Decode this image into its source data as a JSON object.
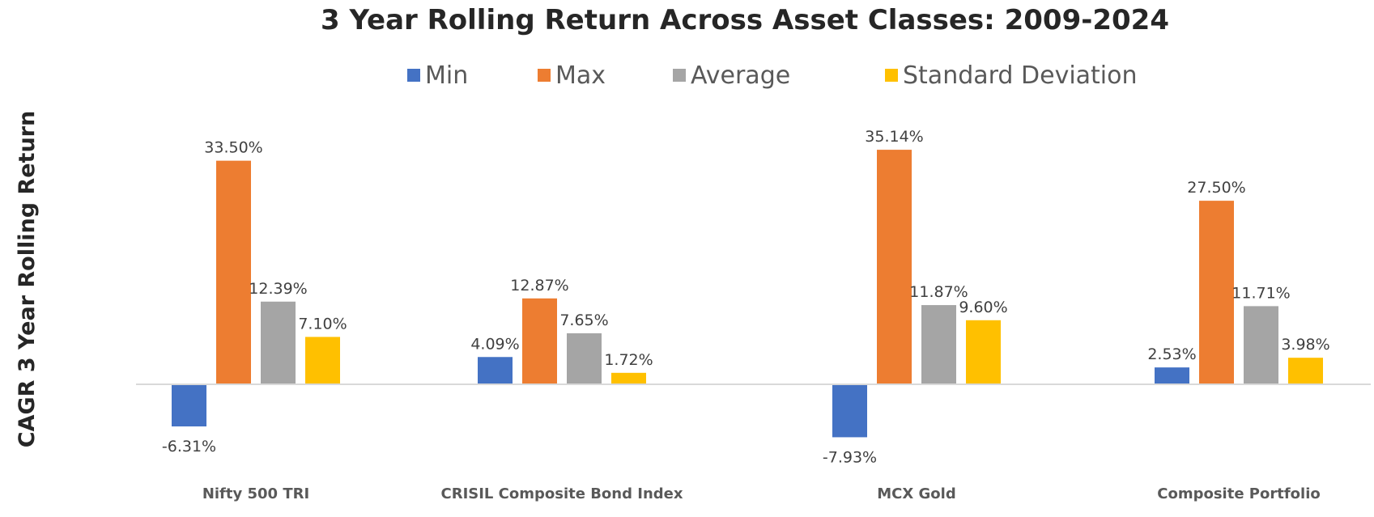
{
  "chart_data": {
    "type": "bar",
    "title": "3 Year Rolling Return Across Asset Classes: 2009-2024",
    "ylabel": "CAGR 3 Year Rolling Return",
    "xlabel": "",
    "categories": [
      "Nifty 500 TRI",
      "CRISIL Composite Bond Index",
      "MCX Gold",
      "Composite Portfolio"
    ],
    "series": [
      {
        "name": "Min",
        "color": "#4472C4",
        "values": [
          -6.31,
          4.09,
          -7.93,
          2.53
        ],
        "labels": [
          "-6.31%",
          "4.09%",
          "-7.93%",
          "2.53%"
        ]
      },
      {
        "name": "Max",
        "color": "#ED7D31",
        "values": [
          33.5,
          12.87,
          35.14,
          27.5
        ],
        "labels": [
          "33.50%",
          "12.87%",
          "35.14%",
          "27.50%"
        ]
      },
      {
        "name": "Average",
        "color": "#A5A5A5",
        "values": [
          12.39,
          7.65,
          11.87,
          11.71
        ],
        "labels": [
          "12.39%",
          "7.65%",
          "11.87%",
          "11.71%"
        ]
      },
      {
        "name": "Standard Deviation",
        "color": "#FFC000",
        "values": [
          7.1,
          1.72,
          9.6,
          3.98
        ],
        "labels": [
          "7.10%",
          "1.72%",
          "9.60%",
          "3.98%"
        ]
      }
    ],
    "ylim": [
      -10,
      37
    ],
    "grid": false,
    "legend": "top-center",
    "axis_color": "#D9D9D9"
  }
}
